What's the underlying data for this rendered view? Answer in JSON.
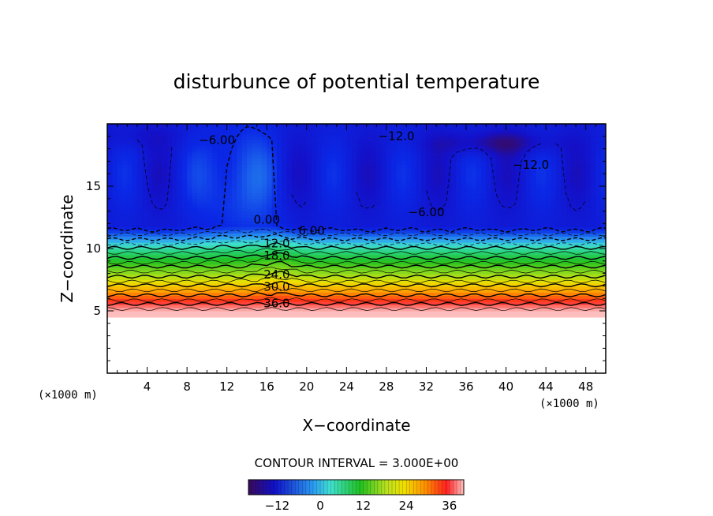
{
  "chart_data": {
    "type": "heatmap",
    "title": "disturbunce of potential temperature",
    "xlabel": "X−coordinate",
    "ylabel": "Z−coordinate",
    "x_unit": "(×1000 m)",
    "z_unit": "(×1000 m)",
    "xlim": [
      0,
      50
    ],
    "ylim": [
      0,
      20
    ],
    "x_ticks": [
      4,
      8,
      12,
      16,
      20,
      24,
      28,
      32,
      36,
      40,
      44,
      48
    ],
    "y_ticks": [
      5,
      10,
      15
    ],
    "x_tick_labels": [
      "4",
      "8",
      "12",
      "16",
      "20",
      "24",
      "28",
      "32",
      "36",
      "40",
      "44",
      "48"
    ],
    "y_tick_labels": [
      "5",
      "10",
      "15"
    ],
    "contour_interval_text": "CONTOUR INTERVAL = 3.000E+00",
    "contour_interval": 3.0,
    "terrain_top_km": 4.5,
    "value_range": [
      -20,
      40
    ],
    "contour_labels": [
      {
        "text": "36.0",
        "x": 17.0,
        "z": 5.3
      },
      {
        "text": "30.0",
        "x": 17.0,
        "z": 6.6
      },
      {
        "text": "24.0",
        "x": 17.0,
        "z": 7.6
      },
      {
        "text": "18.0",
        "x": 17.0,
        "z": 9.1
      },
      {
        "text": "12.0",
        "x": 17.0,
        "z": 10.1
      },
      {
        "text": "6.00",
        "x": 20.5,
        "z": 11.1
      },
      {
        "text": "0.00",
        "x": 16.0,
        "z": 12.0
      },
      {
        "text": "−6.00",
        "x": 32.0,
        "z": 12.6
      },
      {
        "text": "−12.0",
        "x": 42.5,
        "z": 16.4
      },
      {
        "text": "−12.0",
        "x": 29.0,
        "z": 18.7
      },
      {
        "text": "−6.00",
        "x": 11.0,
        "z": 18.4
      }
    ],
    "colorbar": {
      "tick_labels": [
        "−12",
        "0",
        "12",
        "24",
        "36"
      ],
      "tick_values": [
        -12,
        0,
        12,
        24,
        36
      ],
      "range": [
        -20,
        40
      ]
    }
  }
}
